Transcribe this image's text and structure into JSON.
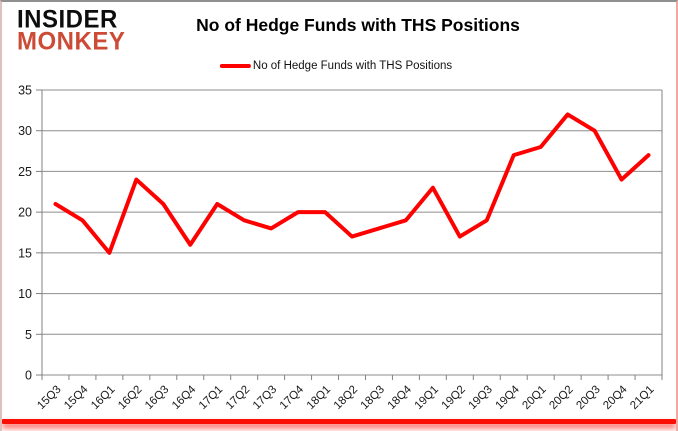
{
  "header": {
    "logo_line1": "INSIDER",
    "logo_line2": "MONKEY",
    "title": "No of Hedge Funds with THS Positions"
  },
  "legend": {
    "label": "No of Hedge Funds with THS Positions",
    "marker_color": "#ff0000"
  },
  "chart_data": {
    "type": "line",
    "title": "No of Hedge Funds with THS Positions",
    "categories": [
      "15Q3",
      "15Q4",
      "16Q1",
      "16Q2",
      "16Q3",
      "16Q4",
      "17Q1",
      "17Q2",
      "17Q3",
      "17Q4",
      "18Q1",
      "18Q2",
      "18Q3",
      "18Q4",
      "19Q1",
      "19Q2",
      "19Q3",
      "19Q4",
      "20Q1",
      "20Q2",
      "20Q3",
      "20Q4",
      "21Q1"
    ],
    "values": [
      21,
      19,
      15,
      24,
      21,
      16,
      21,
      19,
      18,
      20,
      20,
      17,
      18,
      19,
      23,
      17,
      19,
      27,
      28,
      32,
      30,
      24,
      27
    ],
    "xlabel": "",
    "ylabel": "",
    "ylim": [
      0,
      35
    ],
    "yticks": [
      0,
      5,
      10,
      15,
      20,
      25,
      30,
      35
    ],
    "grid": true,
    "legend_position": "top",
    "line_color": "#ff0000",
    "gridline_color": "#8e8e8e",
    "axis_color": "#808080",
    "tick_label_color": "#1a1a1a"
  }
}
